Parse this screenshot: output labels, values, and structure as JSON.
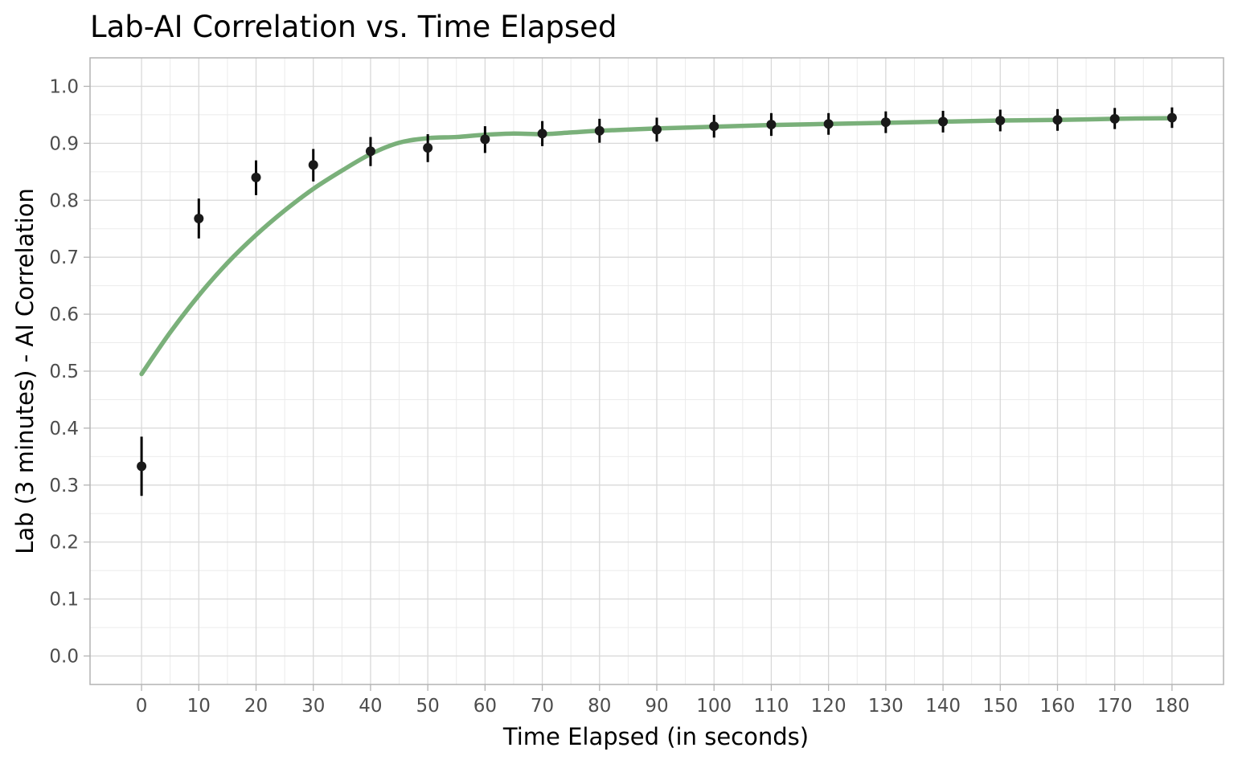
{
  "chart_data": {
    "type": "scatter",
    "title": "Lab-AI Correlation vs. Time Elapsed",
    "xlabel": "Time Elapsed (in seconds)",
    "ylabel": "Lab (3 minutes) - AI Correlation",
    "xlim": [
      -9,
      189
    ],
    "ylim": [
      -0.05,
      1.05
    ],
    "xticks": [
      0,
      10,
      20,
      30,
      40,
      50,
      60,
      70,
      80,
      90,
      100,
      110,
      120,
      130,
      140,
      150,
      160,
      170,
      180
    ],
    "xtick_labels": [
      "0",
      "10",
      "20",
      "30",
      "40",
      "50",
      "60",
      "70",
      "80",
      "90",
      "100",
      "110",
      "120",
      "130",
      "140",
      "150",
      "160",
      "170",
      "180"
    ],
    "yticks": [
      0.0,
      0.1,
      0.2,
      0.3,
      0.4,
      0.5,
      0.6,
      0.7,
      0.8,
      0.9,
      1.0
    ],
    "ytick_labels": [
      "0.0",
      "0.1",
      "0.2",
      "0.3",
      "0.4",
      "0.5",
      "0.6",
      "0.7",
      "0.8",
      "0.9",
      "1.0"
    ],
    "grid": true,
    "theme": "light",
    "series": [
      {
        "kind": "points_with_error_bars",
        "color": "#1a1a1a",
        "x": [
          0,
          10,
          20,
          30,
          40,
          50,
          60,
          70,
          80,
          90,
          100,
          110,
          120,
          130,
          140,
          150,
          160,
          170,
          180
        ],
        "y": [
          0.333,
          0.768,
          0.84,
          0.862,
          0.886,
          0.892,
          0.907,
          0.917,
          0.922,
          0.924,
          0.93,
          0.933,
          0.934,
          0.937,
          0.938,
          0.94,
          0.941,
          0.943,
          0.945
        ],
        "ylow": [
          0.281,
          0.733,
          0.809,
          0.833,
          0.86,
          0.867,
          0.883,
          0.895,
          0.901,
          0.903,
          0.91,
          0.913,
          0.915,
          0.918,
          0.919,
          0.921,
          0.922,
          0.925,
          0.927
        ],
        "yhigh": [
          0.385,
          0.803,
          0.87,
          0.89,
          0.911,
          0.916,
          0.93,
          0.939,
          0.943,
          0.945,
          0.95,
          0.953,
          0.953,
          0.956,
          0.957,
          0.959,
          0.96,
          0.962,
          0.963
        ]
      },
      {
        "kind": "smooth_line",
        "color": "#7ab07a",
        "x": [
          0,
          5,
          10,
          15,
          20,
          25,
          30,
          35,
          40,
          45,
          50,
          55,
          60,
          65,
          70,
          75,
          80,
          90,
          100,
          110,
          120,
          130,
          140,
          150,
          160,
          170,
          180
        ],
        "y": [
          0.495,
          0.568,
          0.633,
          0.69,
          0.739,
          0.782,
          0.82,
          0.852,
          0.881,
          0.901,
          0.909,
          0.911,
          0.915,
          0.917,
          0.916,
          0.919,
          0.922,
          0.926,
          0.929,
          0.932,
          0.934,
          0.936,
          0.938,
          0.94,
          0.941,
          0.943,
          0.944
        ]
      }
    ]
  }
}
